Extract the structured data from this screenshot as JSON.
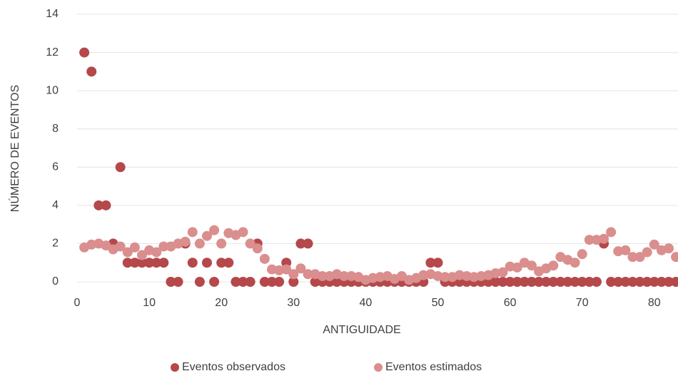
{
  "chart_data": {
    "type": "scatter",
    "xlabel": "ANTIGUIDADE",
    "ylabel": "NÚMERO DE EVENTOS",
    "x": [
      1,
      2,
      3,
      4,
      5,
      6,
      7,
      8,
      9,
      10,
      11,
      12,
      13,
      14,
      15,
      16,
      17,
      18,
      19,
      20,
      21,
      22,
      23,
      24,
      25,
      26,
      27,
      28,
      29,
      30,
      31,
      32,
      33,
      34,
      35,
      36,
      37,
      38,
      39,
      40,
      41,
      42,
      43,
      44,
      45,
      46,
      47,
      48,
      49,
      50,
      51,
      52,
      53,
      54,
      55,
      56,
      57,
      58,
      59,
      60,
      61,
      62,
      63,
      64,
      65,
      66,
      67,
      68,
      69,
      70,
      71,
      72,
      73,
      74,
      75,
      76,
      77,
      78,
      79,
      80,
      81,
      82,
      83
    ],
    "series": [
      {
        "name": "Eventos observados",
        "color": "#b5484a",
        "values": [
          12,
          11,
          4,
          4,
          2,
          6,
          1,
          1,
          1,
          1,
          1,
          1,
          0,
          0,
          2,
          1,
          0,
          1,
          0,
          1,
          1,
          0,
          0,
          0,
          2,
          0,
          0,
          0,
          1,
          0,
          2,
          2,
          0,
          0,
          0,
          0,
          0,
          0,
          0,
          0,
          0,
          0,
          0,
          0,
          0,
          0,
          0,
          0,
          1,
          1,
          0,
          0,
          0,
          0,
          0,
          0,
          0,
          0,
          0,
          0,
          0,
          0,
          0,
          0,
          0,
          0,
          0,
          0,
          0,
          0,
          0,
          0,
          2,
          0,
          0,
          0,
          0,
          0,
          0,
          0,
          0,
          0,
          0
        ]
      },
      {
        "name": "Eventos estimados",
        "color": "#da8e8e",
        "values": [
          1.8,
          1.95,
          2.0,
          1.9,
          1.7,
          1.85,
          1.55,
          1.8,
          1.4,
          1.65,
          1.55,
          1.85,
          1.85,
          2.0,
          2.1,
          2.6,
          2.0,
          2.4,
          2.7,
          2.0,
          2.55,
          2.45,
          2.6,
          2.0,
          1.75,
          1.2,
          0.65,
          0.6,
          0.65,
          0.4,
          0.7,
          0.4,
          0.4,
          0.3,
          0.3,
          0.4,
          0.3,
          0.3,
          0.25,
          0.1,
          0.2,
          0.25,
          0.3,
          0.15,
          0.3,
          0.1,
          0.2,
          0.35,
          0.4,
          0.3,
          0.25,
          0.25,
          0.35,
          0.3,
          0.25,
          0.3,
          0.35,
          0.45,
          0.5,
          0.8,
          0.75,
          1.0,
          0.85,
          0.55,
          0.7,
          0.85,
          1.3,
          1.15,
          1.0,
          1.45,
          2.2,
          2.2,
          2.25,
          2.6,
          1.6,
          1.65,
          1.3,
          1.3,
          1.55,
          1.95,
          1.65,
          1.75,
          1.3
        ]
      }
    ],
    "xlim": [
      0,
      90
    ],
    "xticks": [
      0,
      10,
      20,
      30,
      40,
      50,
      60,
      70,
      80
    ],
    "ylim": [
      0,
      14
    ],
    "yticks": [
      0,
      2,
      4,
      6,
      8,
      10,
      12,
      14
    ],
    "grid": true,
    "legend": "bottom"
  }
}
